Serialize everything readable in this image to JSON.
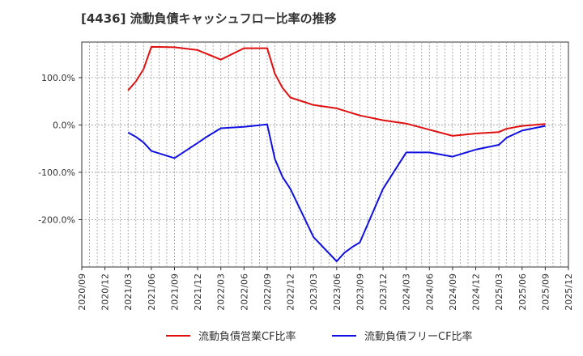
{
  "chart_data": {
    "type": "line",
    "title": "[4436]  流動負債キャッシュフロー比率の推移",
    "xlabel": "",
    "ylabel": "",
    "ylim": [
      -300,
      175
    ],
    "yticks": [
      100,
      0,
      -100,
      -200
    ],
    "ytick_labels": [
      "100.0%",
      "0.0%",
      "-100.0%",
      "-200.0%"
    ],
    "xlim": [
      "2020/09",
      "2025/12"
    ],
    "xtick_labels": [
      "2020/09",
      "2020/12",
      "2021/03",
      "2021/06",
      "2021/09",
      "2021/12",
      "2022/03",
      "2022/06",
      "2022/09",
      "2022/12",
      "2023/03",
      "2023/06",
      "2023/09",
      "2023/12",
      "2024/03",
      "2024/06",
      "2024/09",
      "2024/12",
      "2025/03",
      "2025/06",
      "2025/09",
      "2025/12"
    ],
    "grid": true,
    "legend_position": "bottom",
    "series": [
      {
        "name": "流動負債営業CF比率",
        "color": "#e01010",
        "points": [
          [
            "2021/03",
            73
          ],
          [
            "2021/04",
            92
          ],
          [
            "2021/05",
            118
          ],
          [
            "2021/06",
            165
          ],
          [
            "2021/09",
            164
          ],
          [
            "2021/12",
            158
          ],
          [
            "2022/03",
            138
          ],
          [
            "2022/06",
            162
          ],
          [
            "2022/09",
            162
          ],
          [
            "2022/10",
            108
          ],
          [
            "2022/11",
            78
          ],
          [
            "2022/12",
            58
          ],
          [
            "2023/03",
            42
          ],
          [
            "2023/06",
            35
          ],
          [
            "2023/09",
            20
          ],
          [
            "2023/12",
            10
          ],
          [
            "2024/03",
            3
          ],
          [
            "2024/06",
            -10
          ],
          [
            "2024/09",
            -23
          ],
          [
            "2024/12",
            -18
          ],
          [
            "2025/03",
            -15
          ],
          [
            "2025/04",
            -8
          ],
          [
            "2025/06",
            -2
          ],
          [
            "2025/09",
            2
          ]
        ]
      },
      {
        "name": "流動負債フリーCF比率",
        "color": "#1010e0",
        "points": [
          [
            "2021/03",
            -16
          ],
          [
            "2021/04",
            -25
          ],
          [
            "2021/05",
            -37
          ],
          [
            "2021/06",
            -55
          ],
          [
            "2021/09",
            -70
          ],
          [
            "2021/12",
            -38
          ],
          [
            "2022/01",
            -27
          ],
          [
            "2022/03",
            -7
          ],
          [
            "2022/06",
            -4
          ],
          [
            "2022/09",
            1
          ],
          [
            "2022/10",
            -72
          ],
          [
            "2022/11",
            -110
          ],
          [
            "2022/12",
            -135
          ],
          [
            "2023/03",
            -237
          ],
          [
            "2023/06",
            -288
          ],
          [
            "2023/07",
            -270
          ],
          [
            "2023/08",
            -258
          ],
          [
            "2023/09",
            -248
          ],
          [
            "2023/12",
            -135
          ],
          [
            "2024/03",
            -58
          ],
          [
            "2024/06",
            -58
          ],
          [
            "2024/09",
            -67
          ],
          [
            "2024/12",
            -52
          ],
          [
            "2025/03",
            -42
          ],
          [
            "2025/04",
            -27
          ],
          [
            "2025/06",
            -12
          ],
          [
            "2025/09",
            -2
          ]
        ]
      }
    ]
  }
}
